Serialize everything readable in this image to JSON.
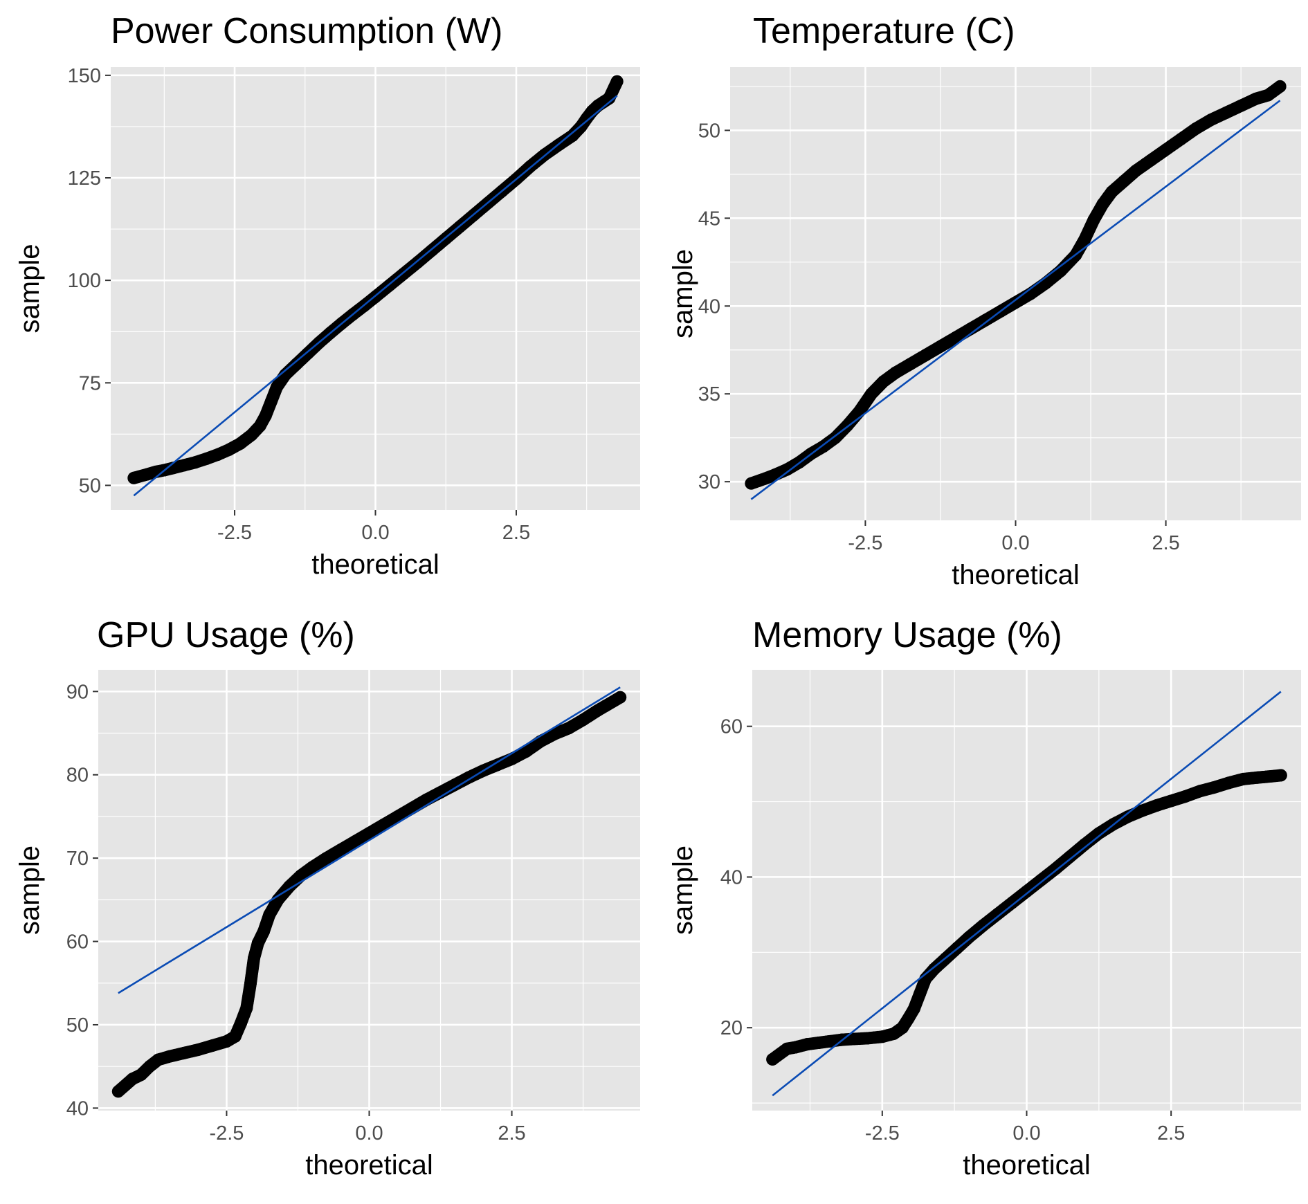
{
  "colors": {
    "panel_background": "#e5e5e5",
    "grid": "#ffffff",
    "points": "#000000",
    "reference_line": "#0a4bb4",
    "tick_color": "#333333"
  },
  "chart_data": [
    {
      "type": "scatter",
      "subtype": "qq-plot",
      "title": "Power Consumption (W)",
      "xlabel": "theoretical",
      "ylabel": "sample",
      "xlim": [
        -4.7,
        4.7
      ],
      "ylim": [
        44,
        152
      ],
      "xticks": [
        -2.5,
        0.0,
        2.5
      ],
      "xtick_labels": [
        "-2.5",
        "0.0",
        "2.5"
      ],
      "yticks": [
        50,
        75,
        100,
        125,
        150
      ],
      "ytick_labels": [
        "50",
        "75",
        "100",
        "125",
        "150"
      ],
      "grid": true,
      "reference_line": {
        "x": [
          -4.29,
          4.29
        ],
        "y": [
          47.5,
          145.0
        ]
      },
      "points": [
        [
          -4.29,
          51.8
        ],
        [
          -4.05,
          52.7
        ],
        [
          -3.9,
          53.3
        ],
        [
          -3.75,
          53.7
        ],
        [
          -3.6,
          54.2
        ],
        [
          -3.4,
          54.9
        ],
        [
          -3.2,
          55.6
        ],
        [
          -3.0,
          56.5
        ],
        [
          -2.8,
          57.5
        ],
        [
          -2.6,
          58.7
        ],
        [
          -2.4,
          60.2
        ],
        [
          -2.2,
          62.3
        ],
        [
          -2.05,
          64.5
        ],
        [
          -1.95,
          67.0
        ],
        [
          -1.85,
          70.5
        ],
        [
          -1.75,
          74.0
        ],
        [
          -1.6,
          77.0
        ],
        [
          -1.4,
          79.6
        ],
        [
          -1.2,
          82.2
        ],
        [
          -1.0,
          84.8
        ],
        [
          -0.8,
          87.2
        ],
        [
          -0.6,
          89.5
        ],
        [
          -0.4,
          91.7
        ],
        [
          -0.2,
          93.8
        ],
        [
          0.0,
          96.0
        ],
        [
          0.25,
          98.8
        ],
        [
          0.5,
          101.6
        ],
        [
          0.75,
          104.4
        ],
        [
          1.0,
          107.3
        ],
        [
          1.25,
          110.2
        ],
        [
          1.5,
          113.1
        ],
        [
          1.75,
          116.0
        ],
        [
          2.0,
          118.9
        ],
        [
          2.25,
          121.8
        ],
        [
          2.5,
          124.7
        ],
        [
          2.75,
          127.8
        ],
        [
          3.0,
          130.6
        ],
        [
          3.25,
          133.0
        ],
        [
          3.5,
          135.3
        ],
        [
          3.65,
          137.5
        ],
        [
          3.75,
          139.5
        ],
        [
          3.85,
          141.3
        ],
        [
          3.95,
          142.6
        ],
        [
          4.05,
          143.5
        ],
        [
          4.15,
          144.4
        ],
        [
          4.29,
          148.5
        ]
      ]
    },
    {
      "type": "scatter",
      "subtype": "qq-plot",
      "title": "Temperature (C)",
      "xlabel": "theoretical",
      "ylabel": "sample",
      "xlim": [
        -4.75,
        4.75
      ],
      "ylim": [
        27.8,
        53.6
      ],
      "xticks": [
        -2.5,
        0.0,
        2.5
      ],
      "xtick_labels": [
        "-2.5",
        "0.0",
        "2.5"
      ],
      "yticks": [
        30,
        35,
        40,
        45,
        50
      ],
      "ytick_labels": [
        "30",
        "35",
        "40",
        "45",
        "50"
      ],
      "grid": true,
      "reference_line": {
        "x": [
          -4.4,
          4.4
        ],
        "y": [
          29.0,
          51.7
        ]
      },
      "points": [
        [
          -4.4,
          29.9
        ],
        [
          -4.15,
          30.2
        ],
        [
          -4.0,
          30.4
        ],
        [
          -3.8,
          30.7
        ],
        [
          -3.6,
          31.1
        ],
        [
          -3.4,
          31.6
        ],
        [
          -3.2,
          32.0
        ],
        [
          -3.0,
          32.5
        ],
        [
          -2.8,
          33.2
        ],
        [
          -2.6,
          34.0
        ],
        [
          -2.4,
          35.0
        ],
        [
          -2.2,
          35.7
        ],
        [
          -2.0,
          36.2
        ],
        [
          -1.75,
          36.7
        ],
        [
          -1.5,
          37.2
        ],
        [
          -1.25,
          37.7
        ],
        [
          -1.0,
          38.2
        ],
        [
          -0.75,
          38.7
        ],
        [
          -0.5,
          39.2
        ],
        [
          -0.25,
          39.7
        ],
        [
          0.0,
          40.2
        ],
        [
          0.25,
          40.7
        ],
        [
          0.5,
          41.3
        ],
        [
          0.75,
          42.0
        ],
        [
          1.0,
          42.9
        ],
        [
          1.15,
          43.8
        ],
        [
          1.3,
          44.9
        ],
        [
          1.45,
          45.8
        ],
        [
          1.6,
          46.5
        ],
        [
          1.8,
          47.1
        ],
        [
          2.0,
          47.7
        ],
        [
          2.25,
          48.3
        ],
        [
          2.5,
          48.9
        ],
        [
          2.75,
          49.5
        ],
        [
          3.0,
          50.1
        ],
        [
          3.25,
          50.6
        ],
        [
          3.5,
          51.0
        ],
        [
          3.75,
          51.4
        ],
        [
          4.0,
          51.8
        ],
        [
          4.2,
          52.0
        ],
        [
          4.4,
          52.5
        ]
      ]
    },
    {
      "type": "scatter",
      "subtype": "qq-plot",
      "title": "GPU Usage (%)",
      "xlabel": "theoretical",
      "ylabel": "sample",
      "xlim": [
        -4.75,
        4.75
      ],
      "ylim": [
        39.7,
        92.6
      ],
      "xticks": [
        -2.5,
        0.0,
        2.5
      ],
      "xtick_labels": [
        "-2.5",
        "0.0",
        "2.5"
      ],
      "yticks": [
        40,
        50,
        60,
        70,
        80,
        90
      ],
      "ytick_labels": [
        "40",
        "50",
        "60",
        "70",
        "80",
        "90"
      ],
      "grid": true,
      "reference_line": {
        "x": [
          -4.4,
          4.4
        ],
        "y": [
          53.8,
          90.5
        ]
      },
      "points": [
        [
          -4.4,
          42.0
        ],
        [
          -4.15,
          43.5
        ],
        [
          -4.0,
          44.0
        ],
        [
          -3.85,
          45.0
        ],
        [
          -3.7,
          45.8
        ],
        [
          -3.5,
          46.2
        ],
        [
          -3.25,
          46.6
        ],
        [
          -3.0,
          47.0
        ],
        [
          -2.75,
          47.5
        ],
        [
          -2.5,
          48.0
        ],
        [
          -2.35,
          48.6
        ],
        [
          -2.25,
          50.2
        ],
        [
          -2.15,
          52.0
        ],
        [
          -2.08,
          55.0
        ],
        [
          -2.02,
          58.0
        ],
        [
          -1.95,
          59.8
        ],
        [
          -1.85,
          61.2
        ],
        [
          -1.75,
          63.2
        ],
        [
          -1.6,
          65.0
        ],
        [
          -1.4,
          66.6
        ],
        [
          -1.2,
          67.9
        ],
        [
          -1.0,
          68.9
        ],
        [
          -0.75,
          70.0
        ],
        [
          -0.5,
          71.0
        ],
        [
          -0.25,
          72.0
        ],
        [
          0.0,
          73.0
        ],
        [
          0.25,
          74.0
        ],
        [
          0.5,
          75.0
        ],
        [
          0.75,
          76.0
        ],
        [
          1.0,
          77.0
        ],
        [
          1.25,
          77.9
        ],
        [
          1.5,
          78.8
        ],
        [
          1.75,
          79.7
        ],
        [
          2.0,
          80.5
        ],
        [
          2.25,
          81.2
        ],
        [
          2.5,
          81.9
        ],
        [
          2.75,
          82.8
        ],
        [
          3.0,
          84.0
        ],
        [
          3.25,
          84.9
        ],
        [
          3.5,
          85.6
        ],
        [
          3.75,
          86.6
        ],
        [
          4.0,
          87.7
        ],
        [
          4.15,
          88.3
        ],
        [
          4.4,
          89.3
        ]
      ]
    },
    {
      "type": "scatter",
      "subtype": "qq-plot",
      "title": "Memory Usage (%)",
      "xlabel": "theoretical",
      "ylabel": "sample",
      "xlim": [
        -4.75,
        4.75
      ],
      "ylim": [
        9.0,
        67.5
      ],
      "xticks": [
        -2.5,
        0.0,
        2.5
      ],
      "xtick_labels": [
        "-2.5",
        "0.0",
        "2.5"
      ],
      "yticks": [
        20,
        40,
        60
      ],
      "ytick_labels": [
        "20",
        "40",
        "60"
      ],
      "grid": true,
      "reference_line": {
        "x": [
          -4.4,
          4.4
        ],
        "y": [
          11.0,
          64.6
        ]
      },
      "points": [
        [
          -4.4,
          15.8
        ],
        [
          -4.15,
          17.2
        ],
        [
          -4.0,
          17.4
        ],
        [
          -3.8,
          17.8
        ],
        [
          -3.6,
          18.0
        ],
        [
          -3.4,
          18.2
        ],
        [
          -3.2,
          18.4
        ],
        [
          -3.0,
          18.5
        ],
        [
          -2.75,
          18.6
        ],
        [
          -2.5,
          18.8
        ],
        [
          -2.3,
          19.2
        ],
        [
          -2.15,
          20.0
        ],
        [
          -2.05,
          21.2
        ],
        [
          -1.95,
          22.5
        ],
        [
          -1.85,
          24.5
        ],
        [
          -1.75,
          26.5
        ],
        [
          -1.6,
          27.8
        ],
        [
          -1.4,
          29.2
        ],
        [
          -1.2,
          30.6
        ],
        [
          -1.0,
          32.0
        ],
        [
          -0.75,
          33.6
        ],
        [
          -0.5,
          35.1
        ],
        [
          -0.25,
          36.6
        ],
        [
          0.0,
          38.1
        ],
        [
          0.25,
          39.6
        ],
        [
          0.5,
          41.1
        ],
        [
          0.75,
          42.7
        ],
        [
          1.0,
          44.3
        ],
        [
          1.25,
          45.8
        ],
        [
          1.5,
          47.0
        ],
        [
          1.75,
          48.0
        ],
        [
          2.0,
          48.8
        ],
        [
          2.25,
          49.5
        ],
        [
          2.5,
          50.1
        ],
        [
          2.75,
          50.7
        ],
        [
          3.0,
          51.4
        ],
        [
          3.25,
          51.9
        ],
        [
          3.5,
          52.5
        ],
        [
          3.75,
          53.0
        ],
        [
          4.0,
          53.2
        ],
        [
          4.15,
          53.3
        ],
        [
          4.4,
          53.5
        ]
      ]
    }
  ]
}
